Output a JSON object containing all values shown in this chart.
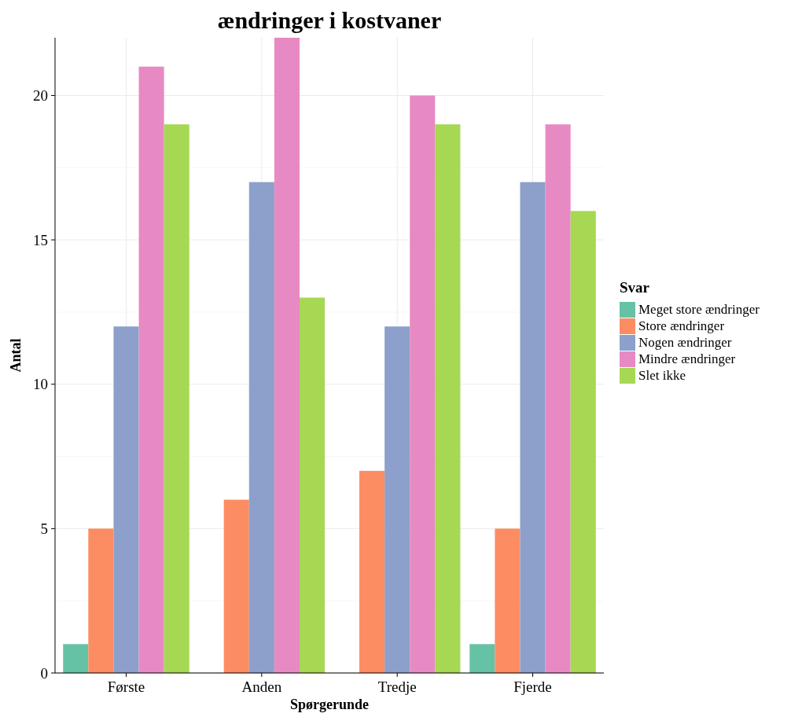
{
  "chart_data": {
    "type": "bar",
    "title": "ændringer i kostvaner",
    "xlabel": "Spørgerunde",
    "ylabel": "Antal",
    "legend_title": "Svar",
    "categories": [
      "Første",
      "Anden",
      "Tredje",
      "Fjerde"
    ],
    "series": [
      {
        "name": "Meget store ændringer",
        "color": "#66c2a5",
        "values": [
          1,
          0,
          0,
          1
        ]
      },
      {
        "name": "Store ændringer",
        "color": "#fc8d62",
        "values": [
          5,
          6,
          7,
          5
        ]
      },
      {
        "name": "Nogen ændringer",
        "color": "#8da0cb",
        "values": [
          12,
          17,
          12,
          17
        ]
      },
      {
        "name": "Mindre ændringer",
        "color": "#e78ac3",
        "values": [
          21,
          22,
          20,
          19
        ]
      },
      {
        "name": "Slet ikke",
        "color": "#a6d854",
        "values": [
          19,
          13,
          19,
          16
        ]
      }
    ],
    "ylim": [
      0,
      22
    ],
    "yticks": [
      0,
      5,
      10,
      15,
      20
    ],
    "grid": true,
    "legend": "right"
  }
}
